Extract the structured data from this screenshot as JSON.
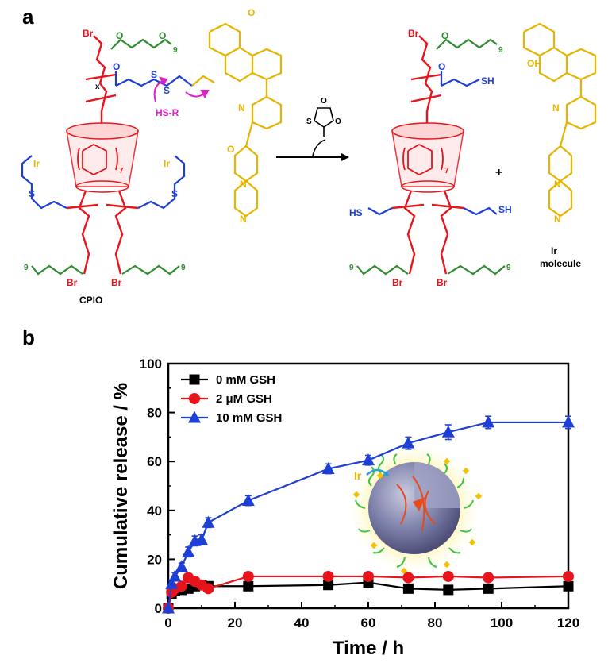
{
  "panel_a": {
    "letter": "a",
    "reactant_label": "CPIO",
    "reagent_label": "HS-R",
    "product_label_line1": "Ir",
    "product_label_line2": "molecule",
    "plus_sign": "+",
    "drug_label": "Ir",
    "byproduct_atoms": {
      "s": "S",
      "o1": "O",
      "o2": "O",
      "o3": "O"
    },
    "atom_labels": {
      "br": "Br",
      "o": "O",
      "s": "S",
      "sh": "SH",
      "hs": "HS",
      "n": "N",
      "oh": "OH",
      "ir": "Ir",
      "x": "x",
      "seven": "7",
      "nine": "9"
    },
    "colors": {
      "red": "#e8141c",
      "green": "#2e8b2e",
      "blue": "#1e3fd6",
      "gold": "#e6b400",
      "magenta": "#e020c8",
      "black": "#000000"
    }
  },
  "panel_b": {
    "letter": "b",
    "inset_label": "Ir"
  },
  "chart_data": {
    "type": "line",
    "xlabel": "Time / h",
    "ylabel": "Cumulative release / %",
    "xlim": [
      0,
      120
    ],
    "ylim": [
      0,
      100
    ],
    "xticks": [
      0,
      20,
      40,
      60,
      80,
      100,
      120
    ],
    "yticks": [
      0,
      20,
      40,
      60,
      80,
      100
    ],
    "grid": false,
    "legend_position": "top-left",
    "series": [
      {
        "name": "0  mM GSH",
        "color": "#000000",
        "marker": "square",
        "x": [
          0,
          1,
          2,
          4,
          6,
          8,
          10,
          12,
          24,
          48,
          60,
          72,
          84,
          96,
          120
        ],
        "y": [
          0,
          6,
          7,
          7.5,
          8,
          9,
          9.5,
          9,
          9,
          9.5,
          10.5,
          8,
          7.5,
          8,
          9
        ],
        "err": [
          0.5,
          1,
          1,
          1,
          1,
          1,
          1,
          1,
          1,
          1,
          1.5,
          1.5,
          1,
          1,
          1
        ]
      },
      {
        "name": "2  μM  GSH",
        "color": "#e8141c",
        "marker": "circle",
        "x": [
          0,
          1,
          2,
          4,
          6,
          8,
          10,
          12,
          24,
          48,
          60,
          72,
          84,
          96,
          120
        ],
        "y": [
          0,
          6.5,
          8,
          9,
          12.5,
          11,
          9.5,
          8,
          13,
          13,
          13,
          12.5,
          13,
          12.5,
          13
        ],
        "err": [
          0.5,
          1,
          1,
          1,
          1,
          1,
          1,
          1,
          1,
          1,
          1,
          1.5,
          1,
          1.5,
          1.5
        ]
      },
      {
        "name": "10 mM GSH",
        "color": "#1e3fd6",
        "marker": "triangle",
        "x": [
          0,
          1,
          2,
          4,
          6,
          8,
          10,
          12,
          24,
          48,
          60,
          72,
          84,
          96,
          120
        ],
        "y": [
          0,
          10,
          13,
          17,
          23,
          27.5,
          28,
          35,
          44,
          57,
          60.5,
          67.5,
          72,
          76,
          76
        ],
        "err": [
          0.5,
          1.5,
          1.5,
          1.5,
          2,
          2,
          2,
          2,
          2,
          2,
          2,
          2.5,
          3,
          2.5,
          2.5
        ]
      }
    ]
  }
}
